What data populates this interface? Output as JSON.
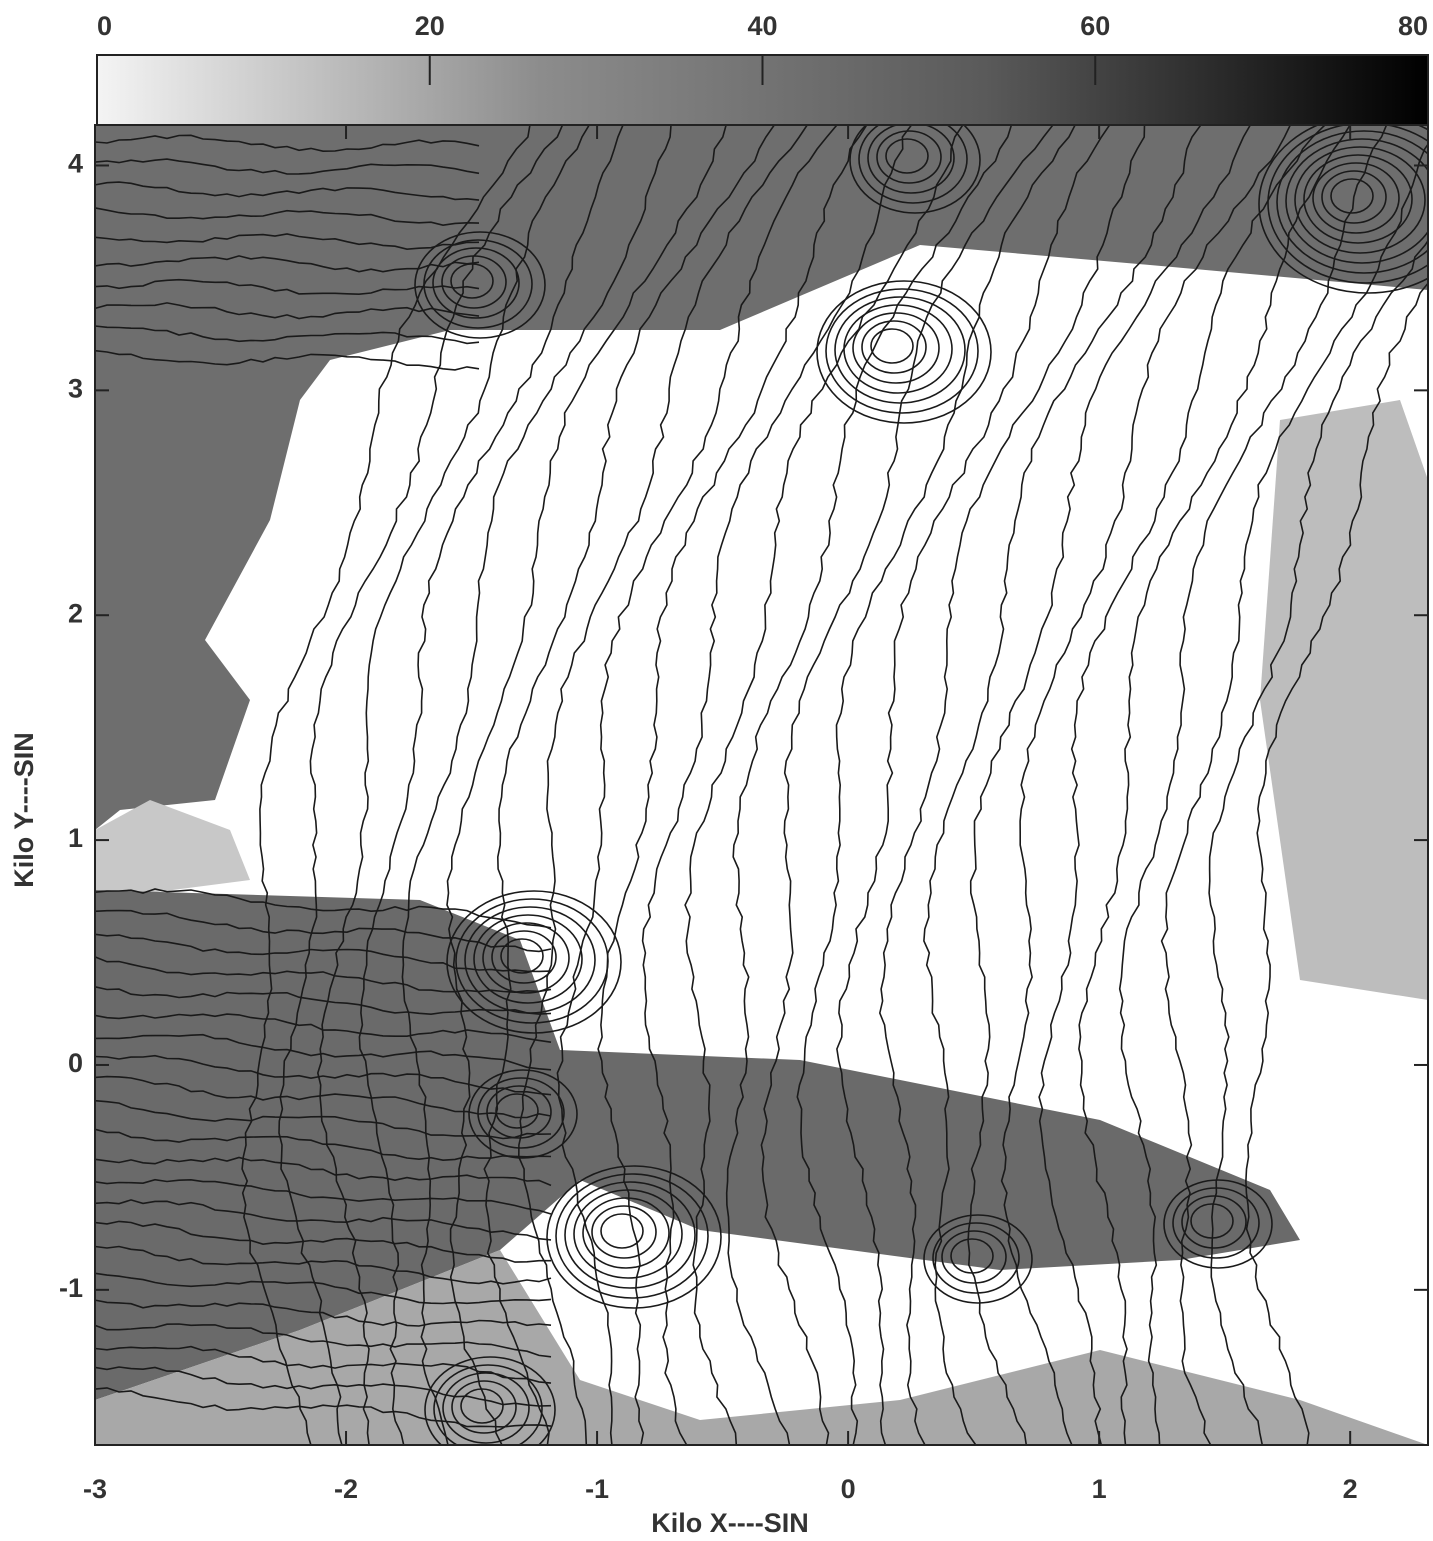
{
  "chart_data": {
    "type": "contour",
    "xlabel": "Kilo X----SIN",
    "ylabel": "Kilo Y----SIN",
    "xlim": [
      -3,
      2.31
    ],
    "xticks": [
      -3,
      -2,
      -1,
      0,
      1,
      2
    ],
    "ylim": [
      -1.69,
      4.18
    ],
    "yticks": [
      -1,
      0,
      1,
      2,
      3,
      4
    ],
    "clim": [
      0,
      80
    ],
    "cticks": [
      0,
      20,
      40,
      60,
      80
    ],
    "colormap": [
      "#f4f4f4",
      "#8c8c8c",
      "#5a5a5a",
      "#000000"
    ],
    "line_color": "#1a1a1a"
  }
}
